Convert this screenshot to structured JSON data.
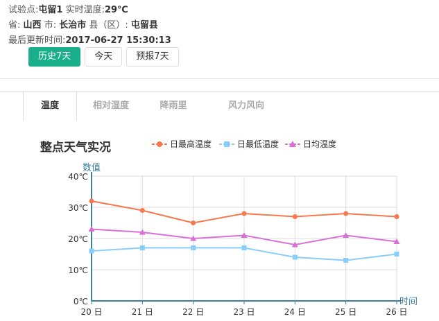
{
  "station": {
    "label_station": "试验点:",
    "station_name": "屯留1",
    "label_temp": " 实时温度:",
    "current_temp": "29℃",
    "label_province": "省:",
    "province": "山西",
    "label_city": "市:",
    "city": "长治市",
    "label_county": "县（区）:",
    "county": "屯留县",
    "label_updated": "最后更新时间:",
    "updated": "2017-06-27 15:30:13"
  },
  "buttons": [
    {
      "label": "历史7天"
    },
    {
      "label": "今天"
    },
    {
      "label": "预报7天"
    }
  ],
  "tabs": [
    {
      "label": "温度"
    },
    {
      "label": "相对湿度"
    },
    {
      "label": "降雨里"
    },
    {
      "label": "风力风向"
    }
  ],
  "colors": {
    "accent": "#1aaf8b",
    "max_series": "#f7784c",
    "min_series": "#87cefa",
    "avg_series": "#da70d6",
    "axis": "#3a7fa6"
  },
  "chart_data": {
    "type": "line",
    "title": "整点天气实况",
    "ylabel": "数值",
    "xlabel": "时间",
    "categories": [
      "20 日",
      "21 日",
      "22 日",
      "23 日",
      "24 日",
      "25 日",
      "26 日"
    ],
    "y_ticks": [
      "0℃",
      "10℃",
      "20℃",
      "30℃",
      "40℃"
    ],
    "ylim": [
      0,
      40
    ],
    "grid": true,
    "legend_position": "top",
    "series": [
      {
        "name": "日最高温度",
        "marker": "circle",
        "values": [
          32,
          29,
          25,
          28,
          27,
          28,
          27
        ]
      },
      {
        "name": "日最低温度",
        "marker": "square",
        "values": [
          16,
          17,
          17,
          17,
          14,
          13,
          15
        ]
      },
      {
        "name": "日均温度",
        "marker": "triangle",
        "values": [
          23,
          22,
          20,
          21,
          18,
          21,
          19
        ]
      }
    ]
  }
}
